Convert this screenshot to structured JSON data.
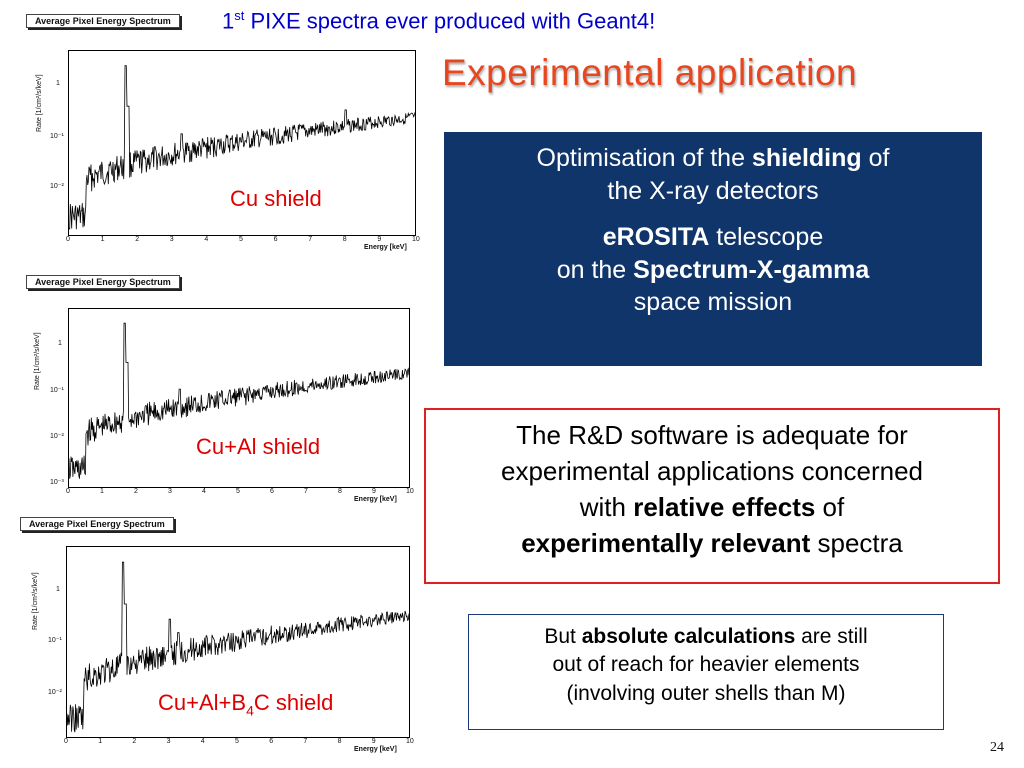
{
  "header": {
    "note_prefix": "1",
    "note_sup": "st",
    "note_text": " PIXE spectra ever produced with Geant4!",
    "title": "Experimental application"
  },
  "spectra": [
    {
      "hist_title": "Average Pixel Energy Spectrum",
      "ylabel": "Rate [1/cm²/s/keV]",
      "xlabel": "Energy [keV]",
      "yticks": [
        "1",
        "10⁻¹",
        "10⁻²"
      ],
      "xticks": [
        "0",
        "1",
        "2",
        "3",
        "4",
        "5",
        "6",
        "7",
        "8",
        "9",
        "10"
      ],
      "label": "Cu shield"
    },
    {
      "hist_title": "Average Pixel Energy Spectrum",
      "ylabel": "Rate [1/cm²/s/keV]",
      "xlabel": "Energy [keV]",
      "yticks": [
        "1",
        "10⁻¹",
        "10⁻²",
        "10⁻³"
      ],
      "xticks": [
        "0",
        "1",
        "2",
        "3",
        "4",
        "5",
        "6",
        "7",
        "8",
        "9",
        "10"
      ],
      "label": "Cu+Al shield"
    },
    {
      "hist_title": "Average Pixel Energy Spectrum",
      "ylabel": "Rate [1/cm²/s/keV]",
      "xlabel": "Energy [keV]",
      "yticks": [
        "1",
        "10⁻¹",
        "10⁻²"
      ],
      "xticks": [
        "0",
        "1",
        "2",
        "3",
        "4",
        "5",
        "6",
        "7",
        "8",
        "9",
        "10"
      ],
      "label_pre": "Cu+Al+B",
      "label_sub": "4",
      "label_post": "C shield"
    }
  ],
  "box_blue": {
    "l1_a": "Optimisation of the ",
    "l1_b": "shielding",
    "l1_c": " of",
    "l2": "the X-ray detectors",
    "l3_a": "eROSITA",
    "l3_b": " telescope",
    "l4_a": "on the ",
    "l4_b": "Spectrum-X-gamma",
    "l5": "space mission"
  },
  "box_red": {
    "l1": "The R&D software is adequate for",
    "l2": "experimental applications concerned",
    "l3_a": "with ",
    "l3_b": "relative effects",
    "l3_c": " of",
    "l4_a": "experimentally relevant",
    "l4_b": " spectra"
  },
  "box_small": {
    "l1_a": "But ",
    "l1_b": "absolute calculations",
    "l1_c": " are still",
    "l2": "out of reach for heavier elements",
    "l3": "(involving outer shells than M)"
  },
  "page_number": "24"
}
